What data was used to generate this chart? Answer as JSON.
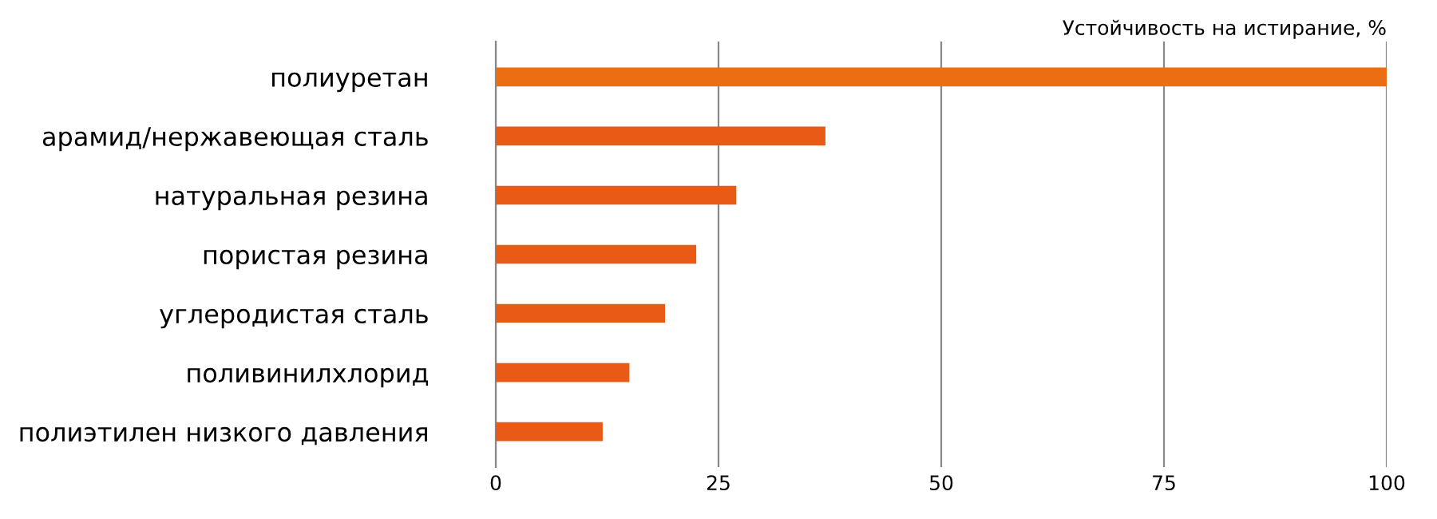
{
  "chart_data": {
    "type": "bar",
    "orientation": "horizontal",
    "xlabel": "Устойчивость на истирание, %",
    "categories": [
      "полиуретан",
      "арамид/нержавеющая сталь",
      "натуральная резина",
      "пористая резина",
      "углеродистая сталь",
      "поливинилхлорид",
      "полиэтилен низкого давления"
    ],
    "values": [
      100,
      37,
      27,
      22.5,
      19,
      15,
      12
    ],
    "colors": [
      "#ec6e12",
      "#e85a16",
      "#e85a16",
      "#e85a16",
      "#e85a16",
      "#e85a16",
      "#e85a16"
    ],
    "xlim": [
      0,
      100
    ],
    "xticks": [
      0,
      25,
      50,
      75,
      100
    ],
    "grid": "x"
  }
}
